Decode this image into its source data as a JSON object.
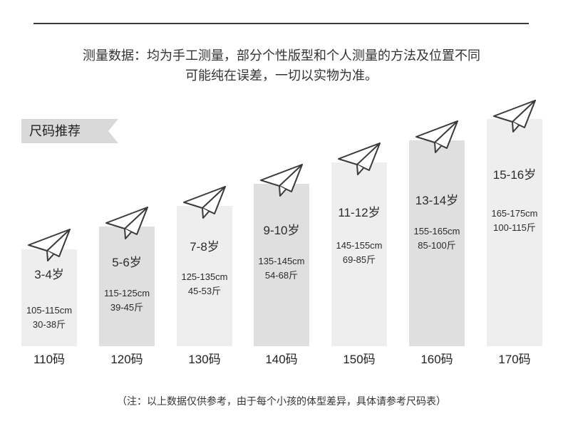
{
  "header": {
    "line1": "测量数据：均为手工测量，部分个性版型和个人测量的方法及位置不同",
    "line2": "可能纯在误差，一切以实物为准。"
  },
  "tag": {
    "label": "尺码推荐"
  },
  "column_icon": "paper-plane-icon",
  "sizes": [
    {
      "age": "3-4岁",
      "height": "105-115cm",
      "weight": "30-38斤",
      "size": "110码"
    },
    {
      "age": "5-6岁",
      "height": "115-125cm",
      "weight": "39-45斤",
      "size": "120码"
    },
    {
      "age": "7-8岁",
      "height": "125-135cm",
      "weight": "45-53斤",
      "size": "130码"
    },
    {
      "age": "9-10岁",
      "height": "135-145cm",
      "weight": "54-68斤",
      "size": "140码"
    },
    {
      "age": "11-12岁",
      "height": "145-155cm",
      "weight": "69-85斤",
      "size": "150码"
    },
    {
      "age": "13-14岁",
      "height": "155-165cm",
      "weight": "85-100斤",
      "size": "160码"
    },
    {
      "age": "15-16岁",
      "height": "165-175cm",
      "weight": "100-115斤",
      "size": "170码"
    }
  ],
  "note": "（注：以上数据仅供参考，由于每个小孩的体型差异，具体请参考尺码表）",
  "colors": {
    "text": "#333333",
    "rule": "#3a3a3a",
    "tag": "#d9d9d9",
    "bar_light": "#eeeeee",
    "bar_dark": "#dfdfdf",
    "icon_stroke": "#3a3a3a"
  }
}
